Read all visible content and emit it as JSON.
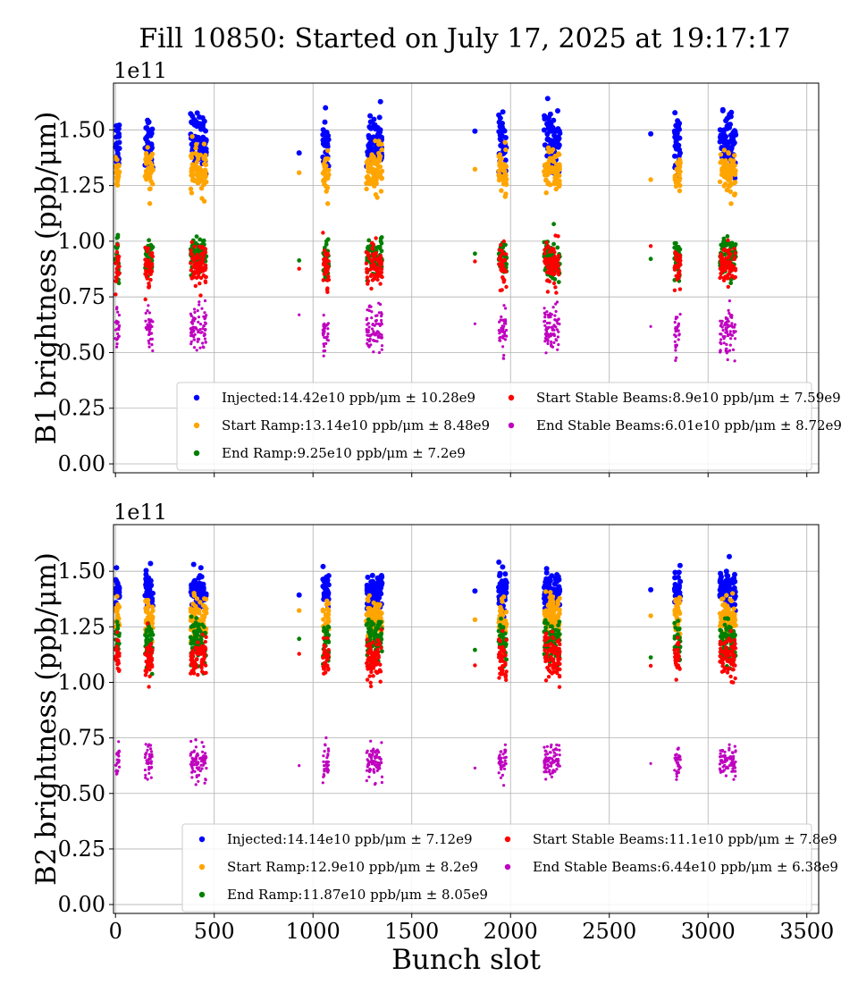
{
  "title": "Fill 10850: Started on July 17, 2025 at 19:17:17",
  "colors": {
    "injected": "#0000ff",
    "start_ramp": "#ffa500",
    "end_ramp": "#008000",
    "start_stable": "#ff0000",
    "end_stable": "#bf00bf"
  },
  "chart_data": [
    {
      "type": "scatter",
      "ylabel": "B1 brightness (ppb/μm)",
      "exponent_label": "1e11",
      "xlim": [
        -10,
        3560
      ],
      "ylim": [
        -4000000000.0,
        171000000000.0
      ],
      "xticks": [
        0,
        500,
        1000,
        1500,
        2000,
        2500,
        3000,
        3500
      ],
      "yticks": [
        0,
        25000000000.0,
        50000000000.0,
        75000000000.0,
        100000000000.0,
        125000000000.0,
        150000000000.0
      ],
      "ytick_labels": [
        "0.00",
        "0.25",
        "0.50",
        "0.75",
        "1.00",
        "1.25",
        "1.50"
      ],
      "grid": true,
      "legend_position": "lower-right",
      "series": [
        {
          "key": "injected",
          "name": "Injected:14.42e10 ppb/μm ± 10.28e9",
          "mean": 144200000000.0,
          "std": 10280000000.0
        },
        {
          "key": "start_ramp",
          "name": "Start Ramp:13.14e10 ppb/μm ± 8.48e9",
          "mean": 131400000000.0,
          "std": 8480000000.0
        },
        {
          "key": "end_ramp",
          "name": "End Ramp:9.25e10 ppb/μm ± 7.2e9",
          "mean": 92500000000.0,
          "std": 7200000000.0
        },
        {
          "key": "start_stable",
          "name": "Start Stable Beams:8.9e10 ppb/μm ± 7.59e9",
          "mean": 89000000000.0,
          "std": 7590000000.0
        },
        {
          "key": "end_stable",
          "name": "End Stable Beams:6.01e10 ppb/μm ± 8.72e9",
          "mean": 60100000000.0,
          "std": 8720000000.0
        }
      ]
    },
    {
      "type": "scatter",
      "ylabel": "B2 brightness (ppb/μm)",
      "xlabel": "Bunch slot",
      "exponent_label": "1e11",
      "xlim": [
        -10,
        3560
      ],
      "ylim": [
        -4000000000.0,
        171000000000.0
      ],
      "xticks": [
        0,
        500,
        1000,
        1500,
        2000,
        2500,
        3000,
        3500
      ],
      "xtick_labels": [
        "0",
        "500",
        "1000",
        "1500",
        "2000",
        "2500",
        "3000",
        "3500"
      ],
      "yticks": [
        0,
        25000000000.0,
        50000000000.0,
        75000000000.0,
        100000000000.0,
        125000000000.0,
        150000000000.0
      ],
      "ytick_labels": [
        "0.00",
        "0.25",
        "0.50",
        "0.75",
        "1.00",
        "1.25",
        "1.50"
      ],
      "grid": true,
      "legend_position": "lower-right",
      "series": [
        {
          "key": "injected",
          "name": "Injected:14.14e10 ppb/μm ± 7.12e9",
          "mean": 141400000000.0,
          "std": 7120000000.0
        },
        {
          "key": "start_ramp",
          "name": "Start Ramp:12.9e10 ppb/μm ± 8.2e9",
          "mean": 129000000000.0,
          "std": 8200000000.0
        },
        {
          "key": "end_ramp",
          "name": "End Ramp:11.87e10 ppb/μm ± 8.05e9",
          "mean": 118700000000.0,
          "std": 8050000000.0
        },
        {
          "key": "start_stable",
          "name": "Start Stable Beams:11.1e10 ppb/μm ± 7.8e9",
          "mean": 111000000000.0,
          "std": 7800000000.0
        },
        {
          "key": "end_stable",
          "name": "End Stable Beams:6.44e10 ppb/μm ± 6.38e9",
          "mean": 64400000000.0,
          "std": 6380000000.0
        }
      ]
    }
  ],
  "bunch_trains": [
    {
      "start": 0,
      "end": 20
    },
    {
      "start": 150,
      "end": 190
    },
    {
      "start": 380,
      "end": 460
    },
    {
      "start": 930,
      "end": 930
    },
    {
      "start": 1050,
      "end": 1080
    },
    {
      "start": 1270,
      "end": 1350
    },
    {
      "start": 1820,
      "end": 1820
    },
    {
      "start": 1940,
      "end": 1980
    },
    {
      "start": 2170,
      "end": 2250
    },
    {
      "start": 2710,
      "end": 2710
    },
    {
      "start": 2830,
      "end": 2860
    },
    {
      "start": 3060,
      "end": 3140
    }
  ]
}
